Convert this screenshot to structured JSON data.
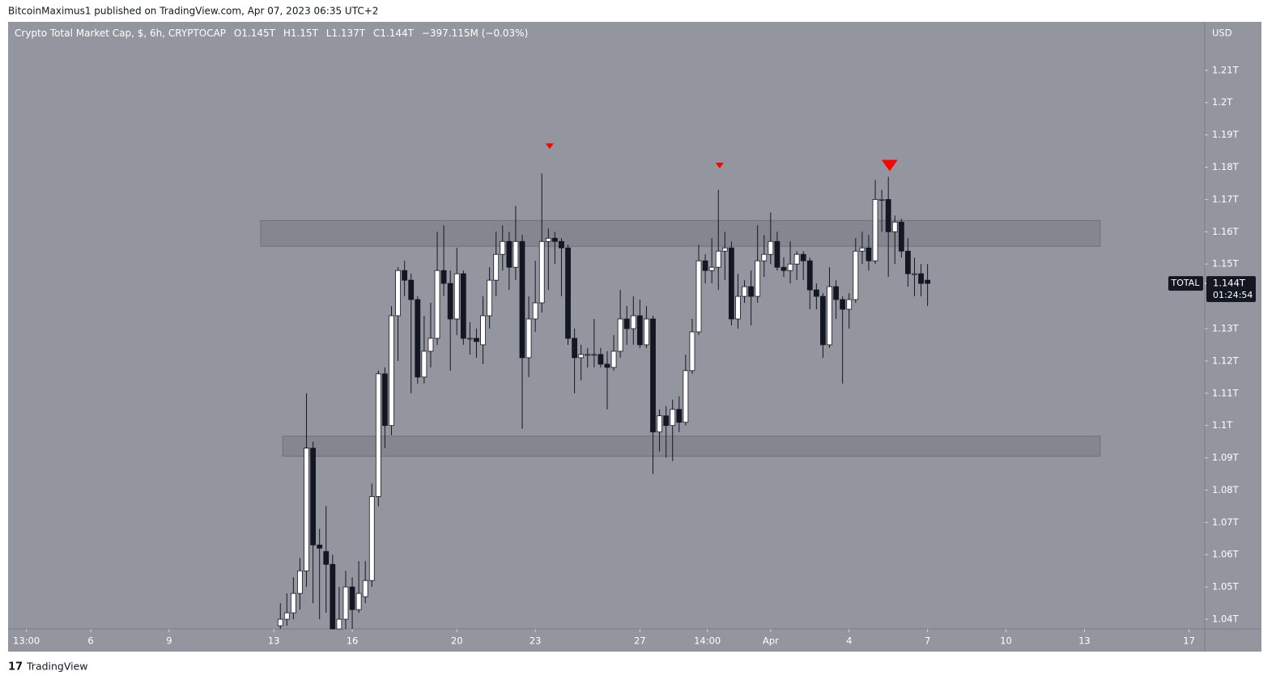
{
  "header": {
    "published": "BitcoinMaximus1 published on TradingView.com, Apr 07, 2023 06:35 UTC+2",
    "footer": "TradingView"
  },
  "chart_data": {
    "type": "candlestick",
    "title": "Crypto Total Market Cap, $, 6h, CRYPTOCAP",
    "legend": {
      "o_label": "O",
      "o": "1.145T",
      "h_label": "H",
      "h": "1.15T",
      "l_label": "L",
      "l": "1.137T",
      "c_label": "C",
      "c": "1.144T",
      "change": "−397.115M (−0.03%)"
    },
    "y_axis_label": "USD",
    "symbol_tag": "TOTAL",
    "last_price": {
      "value": 1.144,
      "label": "1.144T"
    },
    "countdown": "01:24:54",
    "up_color": "#ffffff",
    "down_color": "#131722",
    "marker_color": "#ff0000",
    "zone_color": "#80828b",
    "grid": false,
    "xlim": [
      2.84,
      48.6
    ],
    "ylim": [
      1.037,
      1.225
    ],
    "xticks": [
      {
        "value": 3.54,
        "label": "13:00"
      },
      6,
      9,
      13,
      16,
      20,
      23,
      27,
      {
        "value": 29.58,
        "label": "14:00"
      },
      {
        "value": 32,
        "label": "Apr"
      },
      {
        "value": 35,
        "label": "4"
      },
      {
        "value": 38,
        "label": "7"
      },
      {
        "value": 41,
        "label": "10"
      },
      {
        "value": 44,
        "label": "13"
      },
      {
        "value": 48,
        "label": "17"
      }
    ],
    "yticks": [
      {
        "value": 1.04,
        "label": "1.04T"
      },
      {
        "value": 1.05,
        "label": "1.05T"
      },
      {
        "value": 1.06,
        "label": "1.06T"
      },
      {
        "value": 1.07,
        "label": "1.07T"
      },
      {
        "value": 1.08,
        "label": "1.08T"
      },
      {
        "value": 1.09,
        "label": "1.09T"
      },
      {
        "value": 1.1,
        "label": "1.1T"
      },
      {
        "value": 1.11,
        "label": "1.11T"
      },
      {
        "value": 1.12,
        "label": "1.12T"
      },
      {
        "value": 1.13,
        "label": "1.13T"
      },
      {
        "value": 1.15,
        "label": "1.15T"
      },
      {
        "value": 1.16,
        "label": "1.16T"
      },
      {
        "value": 1.17,
        "label": "1.17T"
      },
      {
        "value": 1.18,
        "label": "1.18T"
      },
      {
        "value": 1.19,
        "label": "1.19T"
      },
      {
        "value": 1.2,
        "label": "1.2T"
      },
      {
        "value": 1.21,
        "label": "1.21T"
      }
    ],
    "zones": [
      {
        "x0": 12.5,
        "x1": 44.6,
        "low": 1.1555,
        "high": 1.1635
      },
      {
        "x0": 13.34,
        "x1": 44.6,
        "low": 1.0905,
        "high": 1.0967
      }
    ],
    "markers": [
      {
        "x": 23.55,
        "y": 1.1865,
        "size": 1
      },
      {
        "x": 30.05,
        "y": 1.1805,
        "size": 1
      },
      {
        "x": 36.55,
        "y": 1.1805,
        "size": 2
      }
    ],
    "x": [
      13.25,
      13.5,
      13.75,
      14,
      14.25,
      14.5,
      14.75,
      15,
      15.25,
      15.5,
      15.75,
      16,
      16.25,
      16.5,
      16.75,
      17,
      17.25,
      17.5,
      17.75,
      18,
      18.25,
      18.5,
      18.75,
      19,
      19.25,
      19.5,
      19.75,
      20,
      20.25,
      20.5,
      20.75,
      21,
      21.25,
      21.5,
      21.75,
      22,
      22.25,
      22.5,
      22.75,
      23,
      23.25,
      23.5,
      23.75,
      24,
      24.25,
      24.5,
      24.75,
      25,
      25.25,
      25.5,
      25.75,
      26,
      26.25,
      26.5,
      26.75,
      27,
      27.25,
      27.5,
      27.75,
      28,
      28.25,
      28.5,
      28.75,
      29,
      29.25,
      29.5,
      29.75,
      30,
      30.25,
      30.5,
      30.75,
      31,
      31.25,
      31.5,
      31.75,
      32,
      32.25,
      32.5,
      32.75,
      33,
      33.25,
      33.5,
      33.75,
      34,
      34.25,
      34.5,
      34.75,
      35,
      35.25,
      35.5,
      35.75,
      36,
      36.25,
      36.5,
      36.75,
      37,
      37.25,
      37.5,
      37.75,
      38
    ],
    "open": [
      1.038,
      1.04,
      1.042,
      1.048,
      1.055,
      1.093,
      1.063,
      1.061,
      1.057,
      1.037,
      1.04,
      1.05,
      1.043,
      1.047,
      1.052,
      1.078,
      1.116,
      1.1,
      1.134,
      1.148,
      1.145,
      1.139,
      1.115,
      1.123,
      1.127,
      1.148,
      1.144,
      1.133,
      1.147,
      1.127,
      1.127,
      1.125,
      1.134,
      1.145,
      1.153,
      1.157,
      1.149,
      1.157,
      1.121,
      1.133,
      1.138,
      1.157,
      1.158,
      1.157,
      1.155,
      1.127,
      1.121,
      1.122,
      1.122,
      1.122,
      1.119,
      1.118,
      1.123,
      1.133,
      1.13,
      1.134,
      1.125,
      1.133,
      1.098,
      1.103,
      1.1,
      1.105,
      1.101,
      1.117,
      1.129,
      1.151,
      1.148,
      1.149,
      1.154,
      1.155,
      1.133,
      1.14,
      1.143,
      1.14,
      1.151,
      1.153,
      1.157,
      1.149,
      1.148,
      1.15,
      1.153,
      1.151,
      1.142,
      1.14,
      1.125,
      1.143,
      1.139,
      1.136,
      1.139,
      1.154,
      1.155,
      1.151,
      1.17,
      1.17,
      1.16,
      1.163,
      1.154,
      1.147,
      1.147,
      1.145
    ],
    "high": [
      1.045,
      1.048,
      1.053,
      1.059,
      1.11,
      1.095,
      1.068,
      1.075,
      1.06,
      1.05,
      1.055,
      1.053,
      1.058,
      1.058,
      1.082,
      1.117,
      1.118,
      1.137,
      1.149,
      1.151,
      1.147,
      1.14,
      1.134,
      1.138,
      1.16,
      1.162,
      1.148,
      1.155,
      1.148,
      1.132,
      1.13,
      1.14,
      1.149,
      1.16,
      1.162,
      1.16,
      1.168,
      1.159,
      1.14,
      1.151,
      1.178,
      1.161,
      1.16,
      1.158,
      1.156,
      1.13,
      1.125,
      1.124,
      1.133,
      1.124,
      1.123,
      1.128,
      1.142,
      1.137,
      1.14,
      1.139,
      1.137,
      1.134,
      1.105,
      1.106,
      1.108,
      1.109,
      1.122,
      1.133,
      1.156,
      1.153,
      1.158,
      1.173,
      1.16,
      1.157,
      1.147,
      1.145,
      1.148,
      1.162,
      1.159,
      1.166,
      1.16,
      1.152,
      1.157,
      1.154,
      1.154,
      1.152,
      1.144,
      1.141,
      1.149,
      1.145,
      1.14,
      1.141,
      1.158,
      1.16,
      1.159,
      1.176,
      1.173,
      1.177,
      1.165,
      1.164,
      1.158,
      1.152,
      1.15,
      1.15
    ],
    "low": [
      1.037,
      1.038,
      1.04,
      1.043,
      1.05,
      1.045,
      1.04,
      1.042,
      1.037,
      1.037,
      1.037,
      1.037,
      1.042,
      1.045,
      1.05,
      1.075,
      1.093,
      1.097,
      1.12,
      1.14,
      1.11,
      1.113,
      1.113,
      1.118,
      1.125,
      1.14,
      1.117,
      1.128,
      1.125,
      1.122,
      1.121,
      1.119,
      1.13,
      1.14,
      1.148,
      1.142,
      1.145,
      1.099,
      1.115,
      1.129,
      1.135,
      1.142,
      1.15,
      1.14,
      1.125,
      1.11,
      1.114,
      1.118,
      1.118,
      1.118,
      1.105,
      1.117,
      1.121,
      1.125,
      1.125,
      1.124,
      1.124,
      1.085,
      1.092,
      1.09,
      1.089,
      1.098,
      1.1,
      1.116,
      1.128,
      1.144,
      1.144,
      1.142,
      1.145,
      1.131,
      1.13,
      1.138,
      1.131,
      1.138,
      1.146,
      1.15,
      1.148,
      1.146,
      1.144,
      1.145,
      1.145,
      1.136,
      1.136,
      1.121,
      1.124,
      1.133,
      1.113,
      1.13,
      1.138,
      1.15,
      1.148,
      1.15,
      1.16,
      1.146,
      1.15,
      1.152,
      1.143,
      1.14,
      1.14,
      1.137
    ],
    "close": [
      1.04,
      1.042,
      1.048,
      1.055,
      1.093,
      1.063,
      1.062,
      1.057,
      1.037,
      1.04,
      1.05,
      1.043,
      1.048,
      1.052,
      1.078,
      1.116,
      1.1,
      1.134,
      1.148,
      1.145,
      1.139,
      1.115,
      1.123,
      1.127,
      1.148,
      1.144,
      1.133,
      1.147,
      1.127,
      1.127,
      1.126,
      1.134,
      1.145,
      1.153,
      1.157,
      1.149,
      1.157,
      1.121,
      1.133,
      1.138,
      1.157,
      1.158,
      1.157,
      1.155,
      1.127,
      1.121,
      1.122,
      1.122,
      1.122,
      1.119,
      1.118,
      1.123,
      1.133,
      1.13,
      1.134,
      1.125,
      1.133,
      1.098,
      1.103,
      1.1,
      1.105,
      1.101,
      1.117,
      1.129,
      1.151,
      1.148,
      1.149,
      1.154,
      1.155,
      1.133,
      1.14,
      1.143,
      1.14,
      1.151,
      1.153,
      1.157,
      1.149,
      1.148,
      1.15,
      1.153,
      1.151,
      1.142,
      1.14,
      1.125,
      1.143,
      1.139,
      1.136,
      1.139,
      1.154,
      1.155,
      1.151,
      1.17,
      1.17,
      1.16,
      1.163,
      1.154,
      1.147,
      1.147,
      1.144,
      1.144
    ]
  }
}
